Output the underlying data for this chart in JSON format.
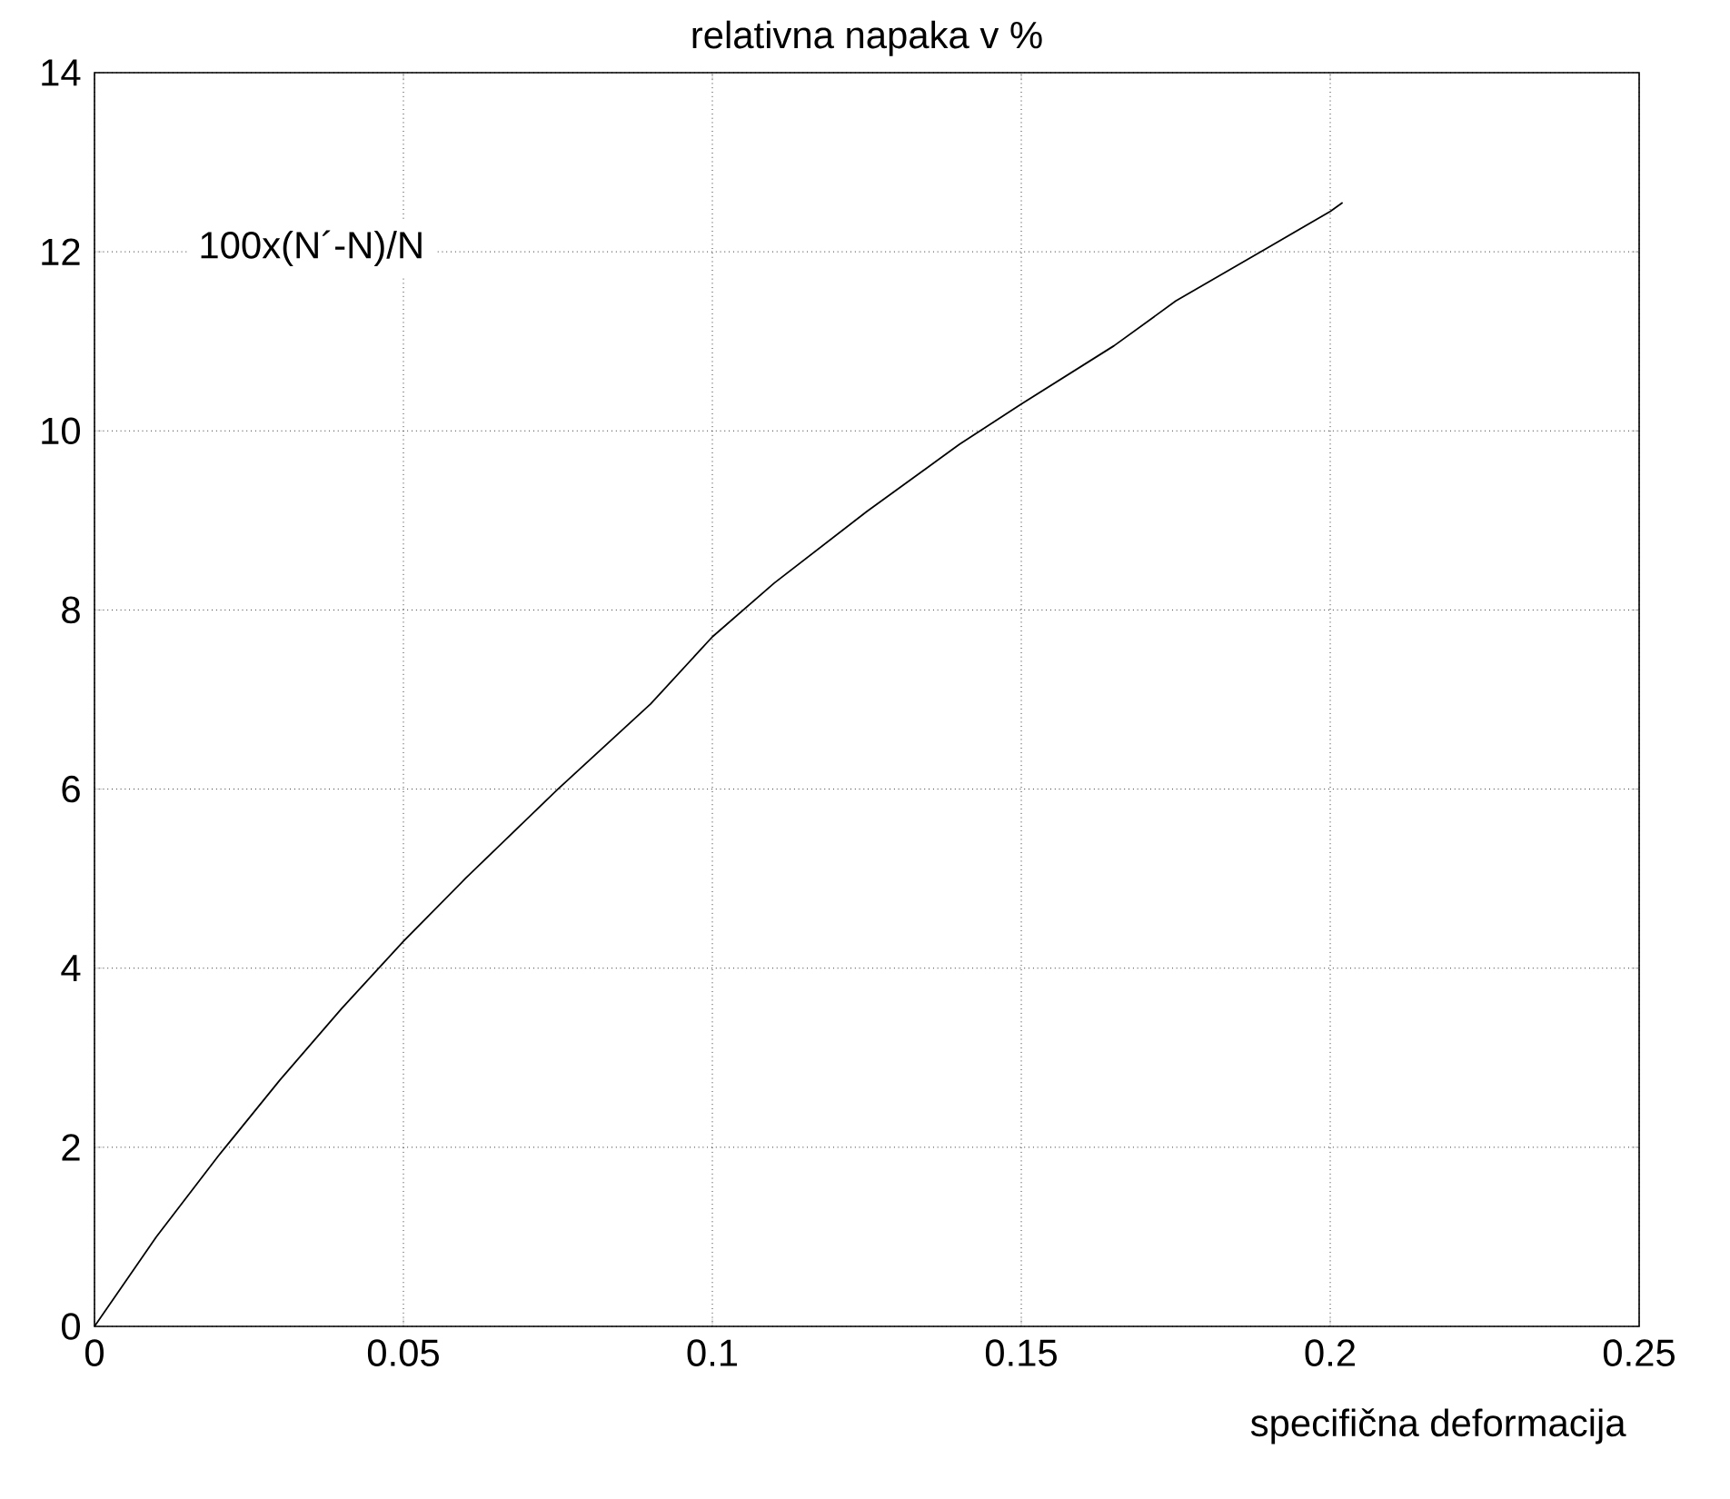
{
  "chart_data": {
    "type": "line",
    "title": "relativna napaka v %",
    "xlabel": "specifična deformacija",
    "annotations": [
      "100x(N´-N)/N"
    ],
    "x": [
      0,
      0.005,
      0.01,
      0.02,
      0.03,
      0.04,
      0.05,
      0.06,
      0.075,
      0.09,
      0.1,
      0.11,
      0.125,
      0.14,
      0.15,
      0.165,
      0.175,
      0.19,
      0.2,
      0.202
    ],
    "series": [
      {
        "color": "#000000",
        "values": [
          0,
          0.5,
          1.0,
          1.9,
          2.75,
          3.55,
          4.3,
          5.0,
          6.0,
          6.95,
          7.7,
          8.3,
          9.1,
          9.85,
          10.3,
          10.95,
          11.45,
          12.05,
          12.45,
          12.55
        ]
      }
    ],
    "xlim": [
      0,
      0.25
    ],
    "ylim": [
      0,
      14
    ],
    "xticks": [
      0,
      0.05,
      0.1,
      0.15,
      0.2,
      0.25
    ],
    "yticks": [
      0,
      2,
      4,
      6,
      8,
      10,
      12,
      14
    ],
    "grid": true,
    "line_style": "solid",
    "marker": "none"
  }
}
